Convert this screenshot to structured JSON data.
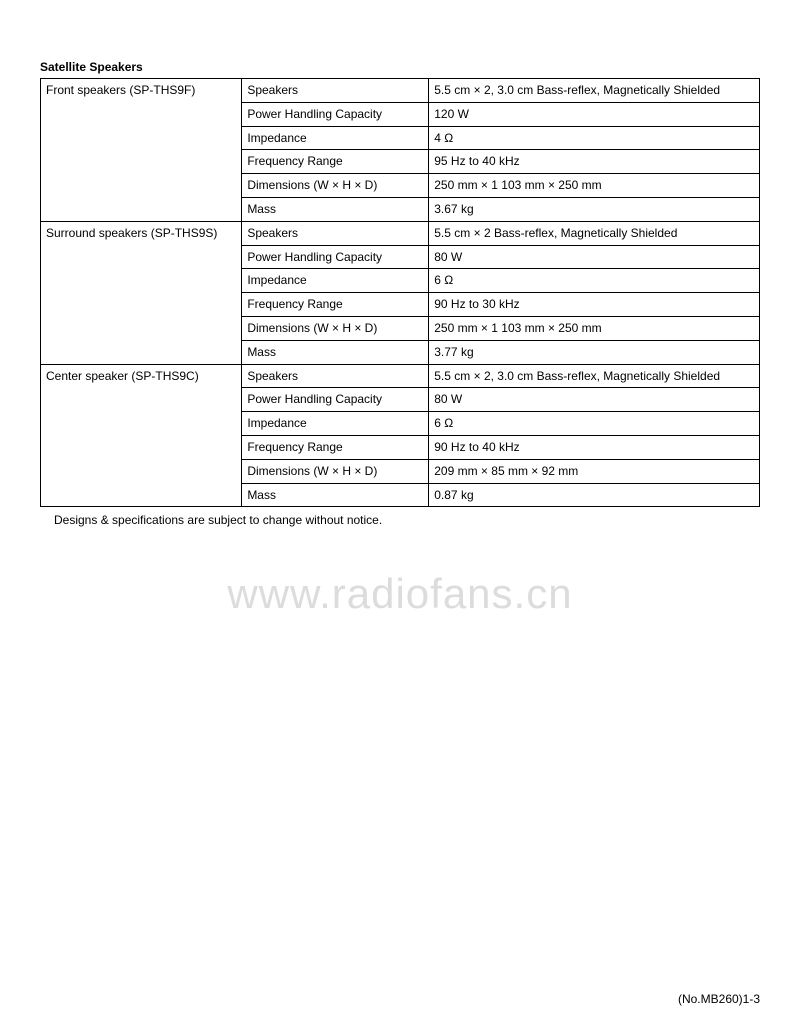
{
  "section_title": "Satellite Speakers",
  "table": {
    "columns": [
      "group",
      "param",
      "value"
    ],
    "col_widths_pct": [
      28,
      26,
      46
    ],
    "border_color": "#000000",
    "background_color": "#ffffff",
    "font_size_pt": 9,
    "groups": [
      {
        "name": "Front speakers (SP-THS9F)",
        "rows": [
          {
            "param": "Speakers",
            "value": "5.5 cm × 2, 3.0 cm Bass-reflex, Magnetically Shielded"
          },
          {
            "param": "Power Handling Capacity",
            "value": "120 W"
          },
          {
            "param": "Impedance",
            "value": "4 Ω"
          },
          {
            "param": "Frequency Range",
            "value": "95 Hz to 40 kHz"
          },
          {
            "param": "Dimensions (W × H × D)",
            "value": "250 mm ×  1 103 mm × 250 mm"
          },
          {
            "param": "Mass",
            "value": "3.67 kg"
          }
        ]
      },
      {
        "name": "Surround speakers (SP-THS9S)",
        "rows": [
          {
            "param": "Speakers",
            "value": "5.5 cm × 2 Bass-reflex, Magnetically Shielded"
          },
          {
            "param": "Power Handling Capacity",
            "value": "80 W"
          },
          {
            "param": "Impedance",
            "value": "6 Ω"
          },
          {
            "param": "Frequency Range",
            "value": "90 Hz to 30 kHz"
          },
          {
            "param": "Dimensions (W × H × D)",
            "value": "250 mm × 1 103 mm × 250 mm"
          },
          {
            "param": "Mass",
            "value": "3.77 kg"
          }
        ]
      },
      {
        "name": "Center speaker (SP-THS9C)",
        "rows": [
          {
            "param": "Speakers",
            "value": "5.5 cm × 2, 3.0 cm Bass-reflex, Magnetically Shielded"
          },
          {
            "param": "Power Handling Capacity",
            "value": "80 W"
          },
          {
            "param": "Impedance",
            "value": "6 Ω"
          },
          {
            "param": "Frequency Range",
            "value": "90 Hz to 40 kHz"
          },
          {
            "param": "Dimensions (W × H × D)",
            "value": "209 mm × 85 mm × 92 mm"
          },
          {
            "param": "Mass",
            "value": "0.87 kg"
          }
        ]
      }
    ]
  },
  "footnote_text": "Designs & specifications are subject to change without notice.",
  "watermark_text": "www.radiofans.cn",
  "watermark_color": "#dcdcdc",
  "page_footer": "(No.MB260)1-3"
}
